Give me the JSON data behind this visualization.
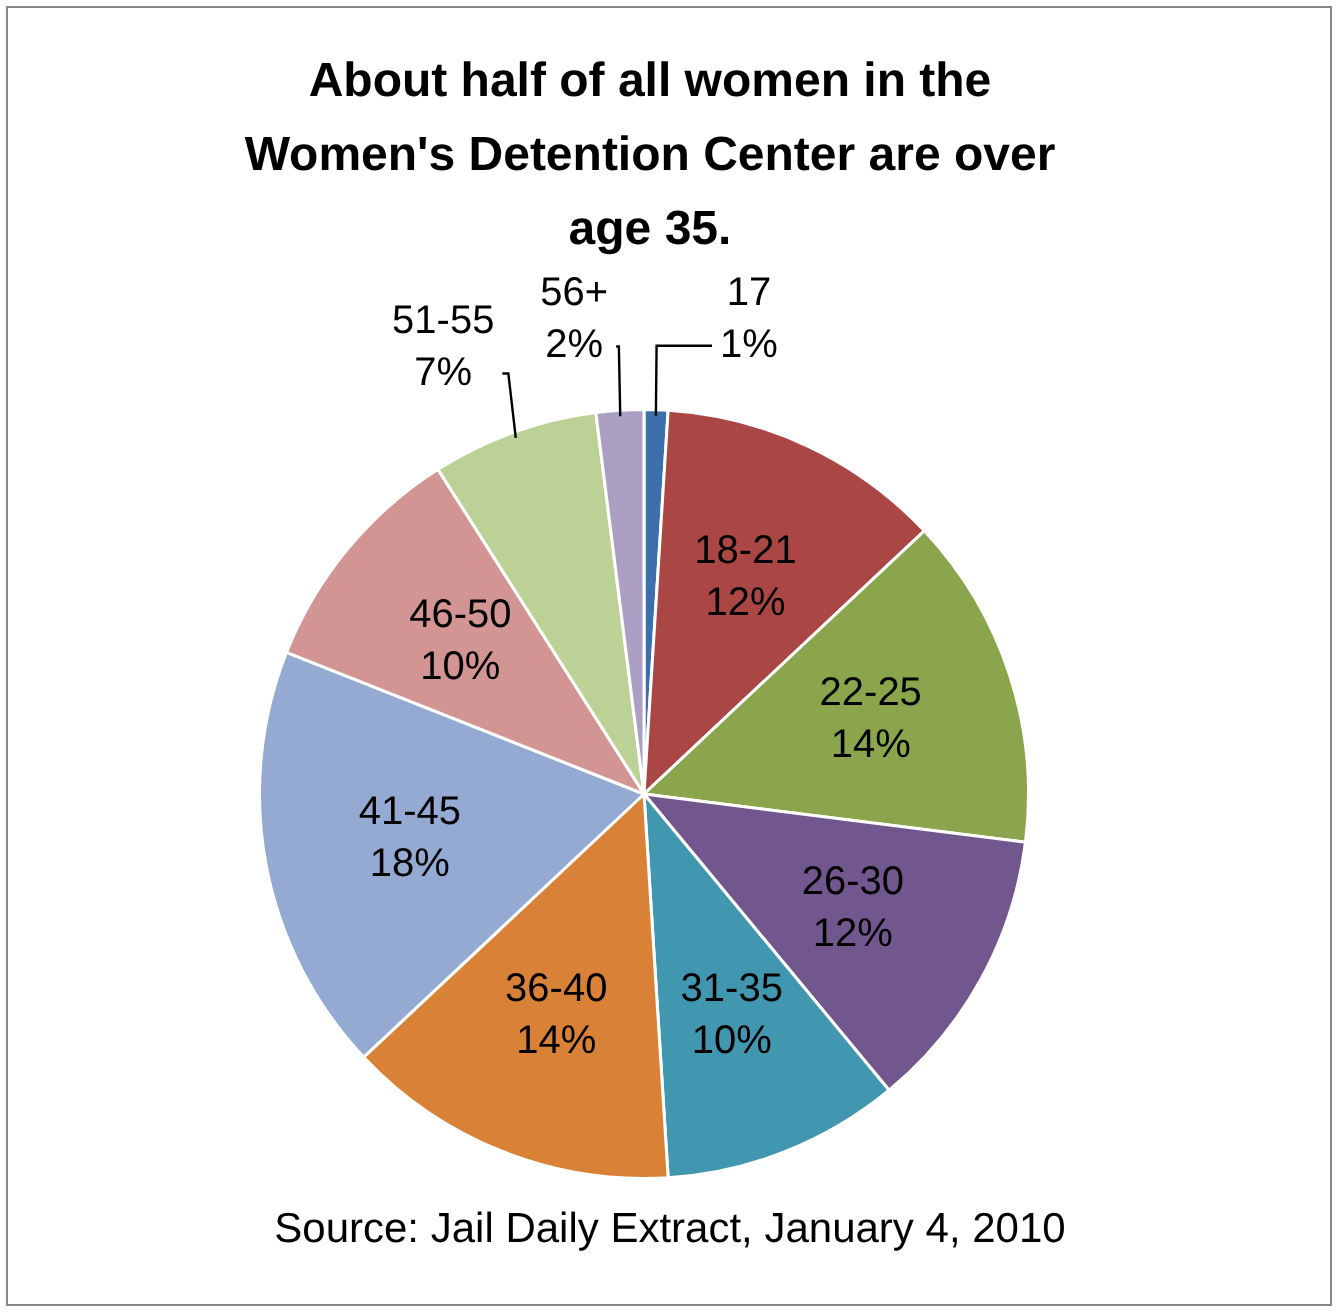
{
  "chart_data": {
    "type": "pie",
    "title": "About half of all women in the Women's Detention Center are over age 35.",
    "categories": [
      "17",
      "18-21",
      "22-25",
      "26-30",
      "31-35",
      "36-40",
      "41-45",
      "46-50",
      "51-55",
      "56+"
    ],
    "values": [
      1,
      12,
      14,
      12,
      10,
      14,
      18,
      10,
      7,
      2
    ],
    "value_labels": [
      "1%",
      "12%",
      "14%",
      "12%",
      "10%",
      "14%",
      "18%",
      "10%",
      "7%",
      "2%"
    ],
    "colors": [
      "#3e6fad",
      "#aa4644",
      "#8ba54c",
      "#72578f",
      "#4197af",
      "#da8138",
      "#94aad2",
      "#d29593",
      "#bcd195",
      "#ab9fc4"
    ],
    "annotations": [
      "Source: Jail Daily Extract, January 4, 2010"
    ],
    "legend": false
  }
}
